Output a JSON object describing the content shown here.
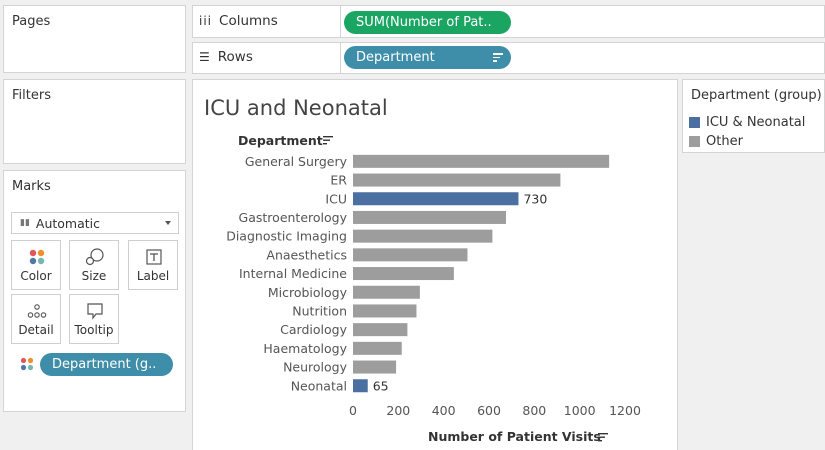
{
  "sidebar": {
    "pages_title": "Pages",
    "filters_title": "Filters",
    "marks_title": "Marks",
    "mark_type": "Automatic",
    "mark_buttons": [
      {
        "label": "Color",
        "icon": "color-dots-icon"
      },
      {
        "label": "Size",
        "icon": "size-icon"
      },
      {
        "label": "Label",
        "icon": "label-icon"
      },
      {
        "label": "Detail",
        "icon": "detail-icon"
      },
      {
        "label": "Tooltip",
        "icon": "tooltip-icon"
      }
    ],
    "color_pill": "Department (g.."
  },
  "shelves": {
    "columns_label": "Columns",
    "columns_pill": "SUM(Number of Pat..",
    "rows_label": "Rows",
    "rows_pill": "Department"
  },
  "legend": {
    "title": "Department (group)",
    "items": [
      {
        "label": "ICU & Neonatal",
        "color": "#4a6fa0"
      },
      {
        "label": "Other",
        "color": "#9d9d9d"
      }
    ]
  },
  "chart_data": {
    "type": "bar",
    "orientation": "horizontal",
    "title": "ICU and Neonatal",
    "ylabel": "Department",
    "xlabel": "Number of Patient Visits",
    "xlim": [
      0,
      1200
    ],
    "xticks": [
      0,
      200,
      400,
      600,
      800,
      1000,
      1200
    ],
    "grid": false,
    "categories": [
      "General Surgery",
      "ER",
      "ICU",
      "Gastroenterology",
      "Diagnostic Imaging",
      "Anaesthetics",
      "Internal Medicine",
      "Microbiology",
      "Nutrition",
      "Cardiology",
      "Haematology",
      "Neurology",
      "Neonatal"
    ],
    "values": [
      1130,
      915,
      730,
      675,
      615,
      505,
      445,
      295,
      280,
      240,
      215,
      190,
      65
    ],
    "groups": [
      "Other",
      "Other",
      "ICU & Neonatal",
      "Other",
      "Other",
      "Other",
      "Other",
      "Other",
      "Other",
      "Other",
      "Other",
      "Other",
      "ICU & Neonatal"
    ],
    "data_labels": {
      "ICU": "730",
      "Neonatal": "65"
    },
    "colors": {
      "ICU & Neonatal": "#4a6fa0",
      "Other": "#9d9d9d"
    }
  }
}
